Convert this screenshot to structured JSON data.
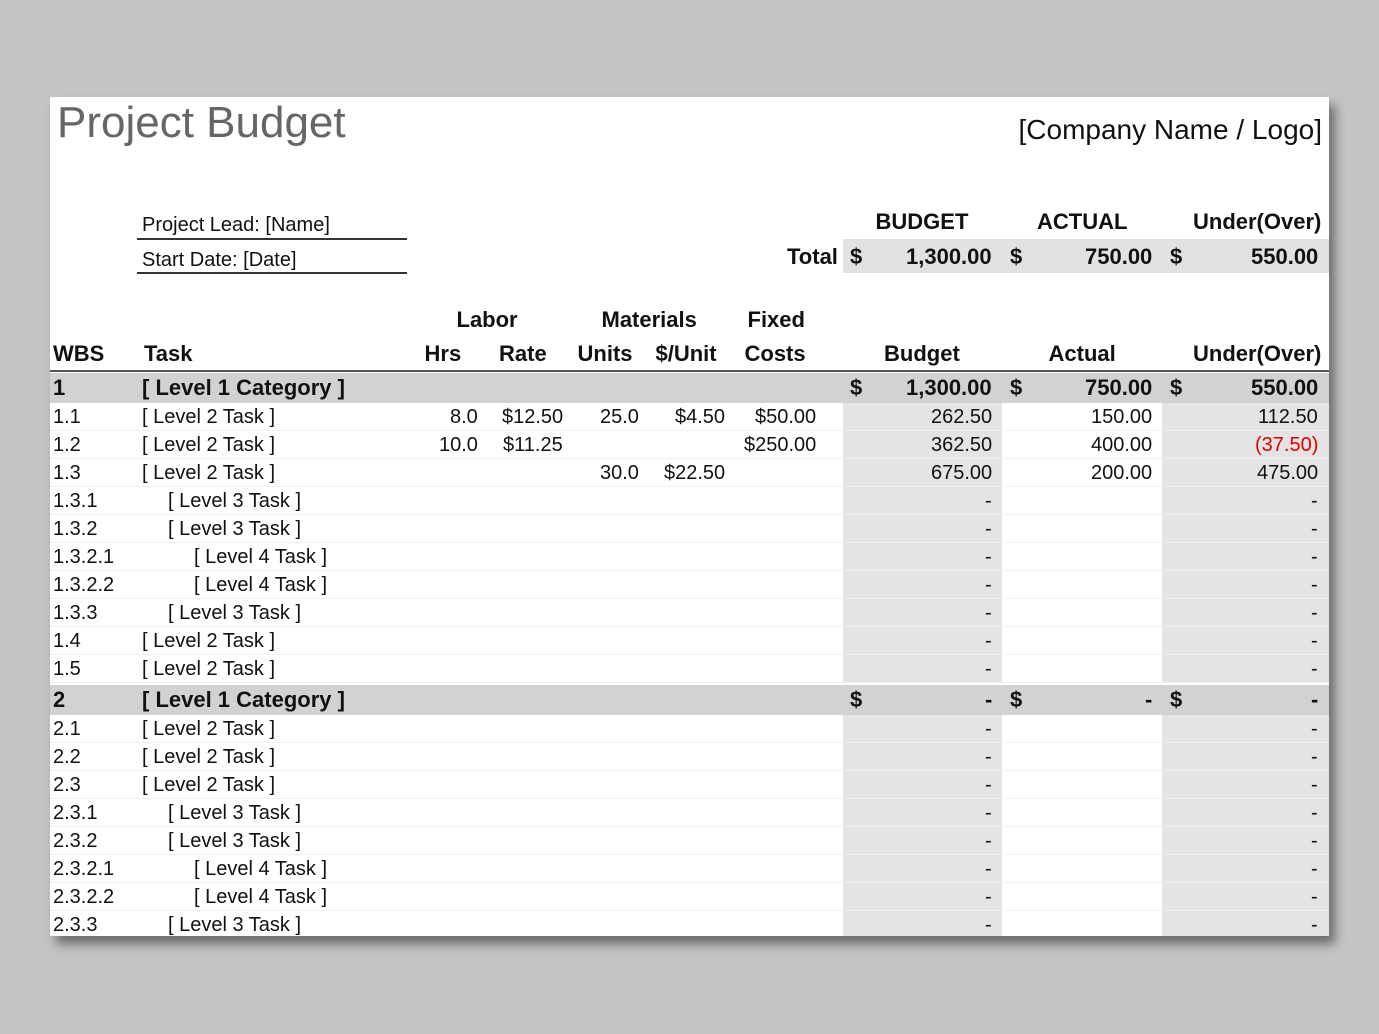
{
  "header": {
    "title": "Project Budget",
    "company": "[Company Name / Logo]",
    "project_lead": "Project Lead: [Name]",
    "start_date": "Start Date: [Date]"
  },
  "summary": {
    "columns": [
      "BUDGET",
      "ACTUAL",
      "Under(Over)"
    ],
    "label": "Total",
    "currency": "$",
    "values": [
      "1,300.00",
      "750.00",
      "550.00"
    ]
  },
  "table": {
    "group_headers": [
      "Labor",
      "Materials",
      "Fixed"
    ],
    "columns": [
      "WBS",
      "Task",
      "Hrs",
      "Rate",
      "Units",
      "$/Unit",
      "Costs",
      "Budget",
      "Actual",
      "Under(Over)"
    ],
    "rows": [
      {
        "wbs": "1",
        "task": "[ Level 1 Category ]",
        "currency": "$",
        "budget": "1,300.00",
        "actual": "750.00",
        "under": "550.00"
      },
      {
        "wbs": "1.1",
        "task": "[ Level 2 Task ]",
        "hrs": "8.0",
        "rate": "$12.50",
        "units": "25.0",
        "unit_cost": "$4.50",
        "fixed": "$50.00",
        "budget": "262.50",
        "actual": "150.00",
        "under": "112.50"
      },
      {
        "wbs": "1.2",
        "task": "[ Level 2 Task ]",
        "hrs": "10.0",
        "rate": "$11.25",
        "fixed": "$250.00",
        "budget": "362.50",
        "actual": "400.00",
        "under": "(37.50)"
      },
      {
        "wbs": "1.3",
        "task": "[ Level 2 Task ]",
        "units": "30.0",
        "unit_cost": "$22.50",
        "budget": "675.00",
        "actual": "200.00",
        "under": "475.00"
      },
      {
        "wbs": "1.3.1",
        "task": "[ Level 3 Task ]",
        "budget": "-",
        "under": "-"
      },
      {
        "wbs": "1.3.2",
        "task": "[ Level 3 Task ]",
        "budget": "-",
        "under": "-"
      },
      {
        "wbs": "1.3.2.1",
        "task": "[ Level 4 Task ]",
        "budget": "-",
        "under": "-"
      },
      {
        "wbs": "1.3.2.2",
        "task": "[ Level 4 Task ]",
        "budget": "-",
        "under": "-"
      },
      {
        "wbs": "1.3.3",
        "task": "[ Level 3 Task ]",
        "budget": "-",
        "under": "-"
      },
      {
        "wbs": "1.4",
        "task": "[ Level 2 Task ]",
        "budget": "-",
        "under": "-"
      },
      {
        "wbs": "1.5",
        "task": "[ Level 2 Task ]",
        "budget": "-",
        "under": "-"
      },
      {
        "wbs": "2",
        "task": "[ Level 1 Category ]",
        "currency": "$",
        "budget": "-",
        "actual": "-",
        "under": "-"
      },
      {
        "wbs": "2.1",
        "task": "[ Level 2 Task ]",
        "budget": "-",
        "under": "-"
      },
      {
        "wbs": "2.2",
        "task": "[ Level 2 Task ]",
        "budget": "-",
        "under": "-"
      },
      {
        "wbs": "2.3",
        "task": "[ Level 2 Task ]",
        "budget": "-",
        "under": "-"
      },
      {
        "wbs": "2.3.1",
        "task": "[ Level 3 Task ]",
        "budget": "-",
        "under": "-"
      },
      {
        "wbs": "2.3.2",
        "task": "[ Level 3 Task ]",
        "budget": "-",
        "under": "-"
      },
      {
        "wbs": "2.3.2.1",
        "task": "[ Level 4 Task ]",
        "budget": "-",
        "under": "-"
      },
      {
        "wbs": "2.3.2.2",
        "task": "[ Level 4 Task ]",
        "budget": "-",
        "under": "-"
      },
      {
        "wbs": "2.3.3",
        "task": "[ Level 3 Task ]",
        "budget": "-",
        "under": "-"
      }
    ]
  }
}
